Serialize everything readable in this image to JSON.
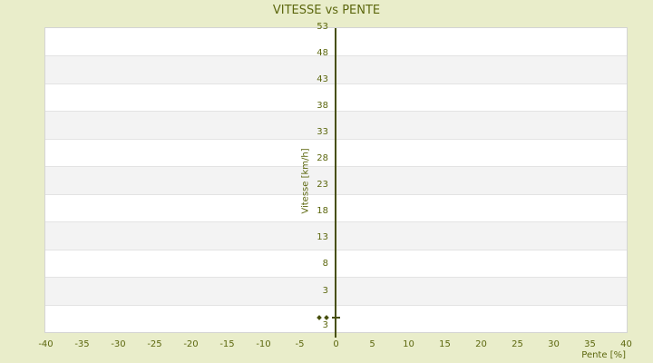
{
  "colors": {
    "background": "#e9edca",
    "plot_background": "#ffffff",
    "band_stripe": "#f3f3f3",
    "gridline": "#e3e3e3",
    "plot_border": "#d4d4d4",
    "axis_line": "#474f09",
    "point": "#474f09",
    "text": "#5c670e"
  },
  "chart_data": {
    "type": "scatter",
    "title": "VITESSE vs PENTE",
    "xlabel": "Pente [%]",
    "ylabel": "Vitesse [km/h]",
    "xlim": [
      -40,
      40
    ],
    "ylim": [
      -2,
      53
    ],
    "x_tick_labels": [
      "-40",
      "-35",
      "-30",
      "-25",
      "-20",
      "-15",
      "-10",
      "-5",
      "0",
      "5",
      "10",
      "15",
      "20",
      "25",
      "30",
      "35",
      "40"
    ],
    "y_tick_labels": [
      "53",
      "48",
      "43",
      "38",
      "33",
      "28",
      "23",
      "18",
      "13",
      "8",
      "3"
    ],
    "y_axis_bottom_extra_label": "3",
    "grid": "alternating horizontal bands (white / light gray), no vertical gridlines",
    "legend": "none",
    "marker": "small diamond",
    "points": [
      {
        "pente": -2.3,
        "vitesse": 0.4
      },
      {
        "pente": -1.2,
        "vitesse": 0.4
      },
      {
        "pente": 0.0,
        "vitesse": 0.4
      }
    ]
  }
}
